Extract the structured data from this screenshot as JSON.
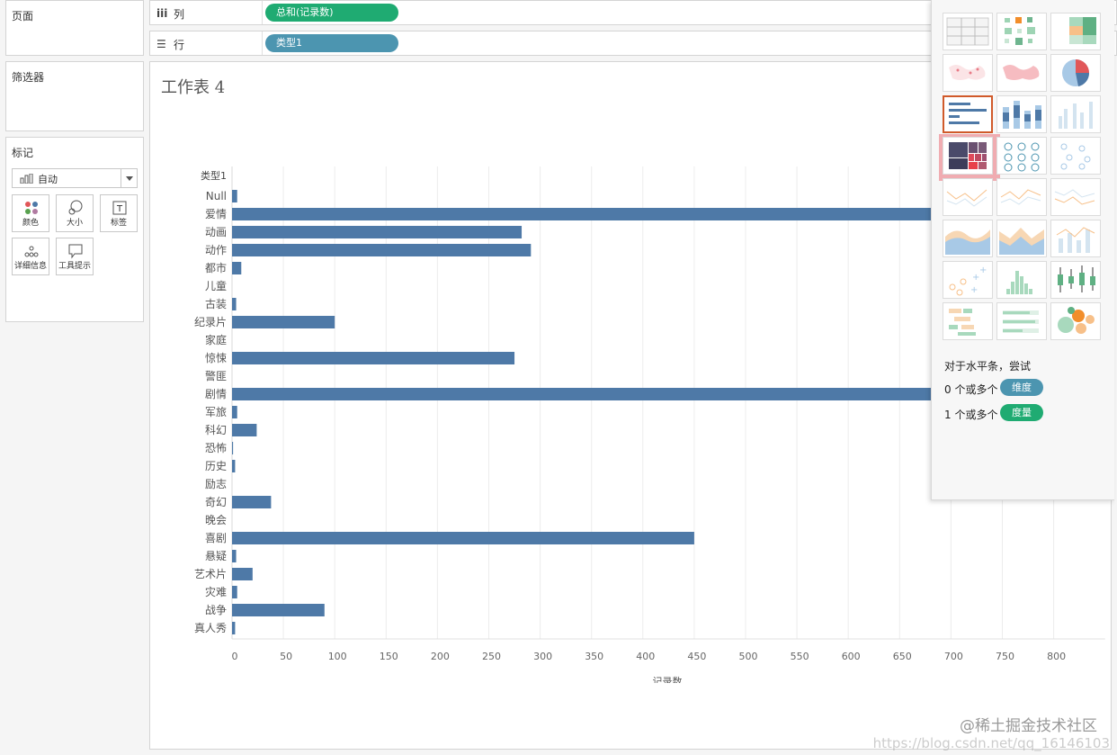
{
  "panels": {
    "pages": "页面",
    "filters": "筛选器",
    "marks": "标记"
  },
  "marks": {
    "type_label": "自动",
    "buttons": [
      "颜色",
      "大小",
      "标签",
      "详细信息",
      "工具提示"
    ]
  },
  "shelves": {
    "columns_label": "列",
    "columns_pill": "总和(记录数)",
    "rows_label": "行",
    "rows_pill": "类型1"
  },
  "sheet": {
    "title": "工作表 4"
  },
  "chart_data": {
    "type": "bar",
    "orientation": "horizontal",
    "row_header": "类型1",
    "categories": [
      "Null",
      "爱情",
      "动画",
      "动作",
      "都市",
      "儿童",
      "古装",
      "纪录片",
      "家庭",
      "惊悚",
      "警匪",
      "剧情",
      "军旅",
      "科幻",
      "恐怖",
      "历史",
      "励志",
      "奇幻",
      "晚会",
      "喜剧",
      "悬疑",
      "艺术片",
      "灾难",
      "战争",
      "真人秀"
    ],
    "values": [
      5,
      780,
      282,
      291,
      9,
      0,
      4,
      100,
      0,
      275,
      0,
      780,
      5,
      24,
      1,
      3,
      0,
      38,
      0,
      450,
      4,
      20,
      5,
      90,
      3
    ],
    "xlabel": "记录数",
    "xticks": [
      0,
      50,
      100,
      150,
      200,
      250,
      300,
      350,
      400,
      450,
      500,
      550,
      600,
      650,
      700,
      750,
      800
    ],
    "xlim": [
      0,
      850
    ],
    "bar_color": "#4e79a7",
    "grid": true
  },
  "show_me": {
    "hint": "对于水平条，尝试",
    "dim_line": "0 个或多个",
    "dim_pill": "维度",
    "measure_line": "1 个或多个",
    "measure_pill": "度量",
    "dim_color": "#4c95b0",
    "measure_color": "#1fab72",
    "selected": "horizontal-bars",
    "highlighted": "treemap"
  },
  "watermark": {
    "main": "@稀土掘金技术社区",
    "url": "https://blog.csdn.net/qq_16146103"
  }
}
